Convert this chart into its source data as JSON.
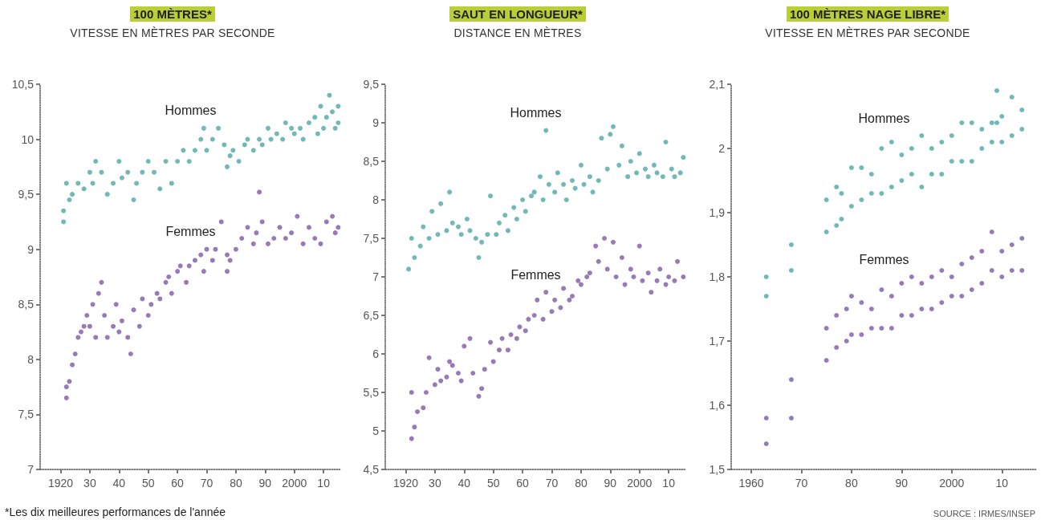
{
  "chart_data": [
    {
      "type": "scatter",
      "title": "100 MÈTRES*",
      "subtitle": "VITESSE EN MÈTRES PAR SECONDE",
      "marker": "circle",
      "xlim": [
        1913,
        2016
      ],
      "ylim": [
        7,
        10.5
      ],
      "xticks": [
        {
          "value": 1920,
          "label": "1920"
        },
        {
          "value": 1930,
          "label": "30"
        },
        {
          "value": 1940,
          "label": "40"
        },
        {
          "value": 1950,
          "label": "50"
        },
        {
          "value": 1960,
          "label": "60"
        },
        {
          "value": 1970,
          "label": "70"
        },
        {
          "value": 1980,
          "label": "80"
        },
        {
          "value": 1990,
          "label": "90"
        },
        {
          "value": 2000,
          "label": "2000"
        },
        {
          "value": 2010,
          "label": "10"
        }
      ],
      "yticks": [
        7,
        {
          "value": 7.5,
          "label": "7,5"
        },
        8,
        {
          "value": 8.5,
          "label": "8,5"
        },
        9,
        {
          "value": 9.5,
          "label": "9,5"
        },
        10,
        {
          "value": 10.5,
          "label": "10,5"
        }
      ],
      "annotations": [
        "*Les dix meilleures performances de l'année"
      ],
      "series": [
        {
          "name": "Hommes",
          "color": "#4fa6a2",
          "x": [
            1921,
            1921,
            1922,
            1923,
            1924,
            1926,
            1928,
            1930,
            1931,
            1932,
            1934,
            1936,
            1938,
            1940,
            1941,
            1943,
            1945,
            1946,
            1948,
            1950,
            1952,
            1954,
            1956,
            1958,
            1960,
            1962,
            1964,
            1966,
            1968,
            1969,
            1970,
            1972,
            1974,
            1976,
            1977,
            1978,
            1979,
            1981,
            1983,
            1984,
            1986,
            1988,
            1989,
            1991,
            1992,
            1994,
            1996,
            1997,
            1999,
            2000,
            2002,
            2003,
            2005,
            2007,
            2008,
            2009,
            2010,
            2011,
            2012,
            2013,
            2014,
            2015,
            2015
          ],
          "values": [
            9.25,
            9.35,
            9.6,
            9.45,
            9.5,
            9.6,
            9.55,
            9.7,
            9.6,
            9.8,
            9.7,
            9.5,
            9.6,
            9.8,
            9.65,
            9.7,
            9.45,
            9.6,
            9.7,
            9.8,
            9.7,
            9.55,
            9.8,
            9.6,
            9.8,
            9.9,
            9.8,
            9.9,
            10.0,
            10.1,
            9.9,
            10.0,
            10.1,
            9.95,
            9.75,
            9.85,
            9.9,
            9.8,
            9.95,
            10.0,
            9.9,
            10.0,
            9.95,
            10.1,
            10.0,
            10.05,
            10.0,
            10.15,
            10.1,
            10.05,
            10.1,
            10.0,
            10.15,
            10.2,
            10.05,
            10.3,
            10.1,
            10.2,
            10.4,
            10.25,
            10.1,
            10.3,
            10.15
          ]
        },
        {
          "name": "Femmes",
          "color": "#7d5aa8",
          "x": [
            1922,
            1922,
            1923,
            1924,
            1925,
            1926,
            1927,
            1928,
            1929,
            1930,
            1931,
            1932,
            1933,
            1934,
            1935,
            1936,
            1938,
            1939,
            1940,
            1941,
            1943,
            1944,
            1945,
            1947,
            1948,
            1950,
            1951,
            1953,
            1954,
            1956,
            1957,
            1958,
            1960,
            1961,
            1963,
            1964,
            1966,
            1968,
            1969,
            1970,
            1972,
            1973,
            1975,
            1977,
            1977,
            1978,
            1980,
            1982,
            1984,
            1986,
            1987,
            1988,
            1989,
            1991,
            1993,
            1995,
            1997,
            1999,
            2001,
            2003,
            2005,
            2007,
            2009,
            2011,
            2013,
            2014,
            2015
          ],
          "values": [
            7.65,
            7.75,
            7.8,
            7.95,
            8.05,
            8.2,
            8.25,
            8.3,
            8.4,
            8.3,
            8.5,
            8.2,
            8.6,
            8.7,
            8.4,
            8.2,
            8.3,
            8.5,
            8.25,
            8.35,
            8.2,
            8.05,
            8.45,
            8.3,
            8.55,
            8.4,
            8.5,
            8.6,
            8.55,
            8.7,
            8.75,
            8.6,
            8.8,
            8.85,
            8.7,
            8.85,
            8.9,
            8.95,
            8.8,
            9.0,
            8.9,
            9.0,
            9.25,
            8.8,
            8.95,
            8.9,
            9.0,
            9.1,
            9.2,
            9.05,
            9.15,
            9.52,
            9.25,
            9.05,
            9.1,
            9.2,
            9.1,
            9.15,
            9.3,
            9.05,
            9.2,
            9.1,
            9.05,
            9.25,
            9.3,
            9.15,
            9.2
          ]
        }
      ]
    },
    {
      "type": "scatter",
      "title": "SAUT EN LONGUEUR*",
      "subtitle": "DISTANCE EN MÈTRES",
      "marker": "circle",
      "xlim": [
        1913,
        2016
      ],
      "ylim": [
        4.5,
        9.5
      ],
      "xticks": [
        {
          "value": 1920,
          "label": "1920"
        },
        {
          "value": 1930,
          "label": "30"
        },
        {
          "value": 1940,
          "label": "40"
        },
        {
          "value": 1950,
          "label": "50"
        },
        {
          "value": 1960,
          "label": "60"
        },
        {
          "value": 1970,
          "label": "70"
        },
        {
          "value": 1980,
          "label": "80"
        },
        {
          "value": 1990,
          "label": "90"
        },
        {
          "value": 2000,
          "label": "2000"
        },
        {
          "value": 2010,
          "label": "10"
        }
      ],
      "yticks": [
        {
          "value": 4.5,
          "label": "4,5"
        },
        5,
        {
          "value": 5.5,
          "label": "5,5"
        },
        6,
        {
          "value": 6.5,
          "label": "6,5"
        },
        7,
        {
          "value": 7.5,
          "label": "7,5"
        },
        8,
        {
          "value": 8.5,
          "label": "8,5"
        },
        9,
        {
          "value": 9.5,
          "label": "9,5"
        }
      ],
      "series": [
        {
          "name": "Hommes",
          "color": "#4fa6a2",
          "x": [
            1921,
            1922,
            1923,
            1925,
            1926,
            1928,
            1929,
            1931,
            1932,
            1934,
            1935,
            1936,
            1938,
            1939,
            1941,
            1942,
            1944,
            1945,
            1946,
            1948,
            1949,
            1951,
            1952,
            1954,
            1955,
            1957,
            1958,
            1960,
            1961,
            1963,
            1964,
            1966,
            1967,
            1968,
            1969,
            1971,
            1972,
            1974,
            1975,
            1977,
            1978,
            1980,
            1981,
            1983,
            1984,
            1986,
            1987,
            1989,
            1990,
            1991,
            1993,
            1994,
            1996,
            1997,
            1999,
            2000,
            2002,
            2003,
            2005,
            2006,
            2008,
            2009,
            2011,
            2012,
            2014,
            2015
          ],
          "values": [
            7.1,
            7.5,
            7.25,
            7.4,
            7.65,
            7.5,
            7.85,
            7.55,
            7.95,
            7.6,
            8.1,
            7.7,
            7.65,
            7.55,
            7.75,
            7.6,
            7.5,
            7.25,
            7.45,
            7.55,
            8.05,
            7.55,
            7.7,
            7.8,
            7.6,
            7.9,
            7.75,
            8.0,
            7.85,
            8.05,
            8.1,
            8.3,
            8.0,
            8.9,
            8.2,
            8.1,
            8.35,
            8.2,
            8.0,
            8.25,
            8.15,
            8.45,
            8.2,
            8.3,
            8.1,
            8.25,
            8.8,
            8.4,
            8.85,
            8.95,
            8.45,
            8.7,
            8.3,
            8.5,
            8.35,
            8.6,
            8.4,
            8.3,
            8.45,
            8.35,
            8.3,
            8.75,
            8.4,
            8.3,
            8.35,
            8.55
          ]
        },
        {
          "name": "Femmes",
          "color": "#7d5aa8",
          "x": [
            1922,
            1922,
            1923,
            1924,
            1926,
            1927,
            1928,
            1930,
            1931,
            1932,
            1934,
            1935,
            1936,
            1938,
            1939,
            1940,
            1942,
            1943,
            1945,
            1946,
            1947,
            1949,
            1950,
            1952,
            1953,
            1955,
            1956,
            1958,
            1959,
            1961,
            1962,
            1964,
            1965,
            1967,
            1968,
            1970,
            1971,
            1973,
            1974,
            1976,
            1977,
            1979,
            1980,
            1982,
            1983,
            1985,
            1986,
            1988,
            1989,
            1991,
            1992,
            1994,
            1995,
            1997,
            1998,
            2000,
            2001,
            2003,
            2004,
            2006,
            2007,
            2009,
            2010,
            2012,
            2013,
            2015
          ],
          "values": [
            4.9,
            5.5,
            5.05,
            5.25,
            5.3,
            5.5,
            5.95,
            5.6,
            5.8,
            5.65,
            5.7,
            5.9,
            5.85,
            5.75,
            5.65,
            6.1,
            6.2,
            5.75,
            5.45,
            5.55,
            5.8,
            6.15,
            5.9,
            6.05,
            6.2,
            6.05,
            6.25,
            6.2,
            6.35,
            6.3,
            6.45,
            6.5,
            6.7,
            6.45,
            6.8,
            6.55,
            6.7,
            6.6,
            6.85,
            6.7,
            6.75,
            6.95,
            6.9,
            7.0,
            7.05,
            7.4,
            7.2,
            7.5,
            7.1,
            7.45,
            7.0,
            7.25,
            6.9,
            7.1,
            7.0,
            7.4,
            6.95,
            7.05,
            6.8,
            6.95,
            7.1,
            6.9,
            7.0,
            6.95,
            7.2,
            7.0
          ]
        }
      ]
    },
    {
      "type": "scatter",
      "title": "100 MÈTRES NAGE LIBRE*",
      "subtitle": "VITESSE EN MÈTRES PAR SECONDE",
      "marker": "circle",
      "xlim": [
        1956,
        2017
      ],
      "ylim": [
        1.5,
        2.1
      ],
      "xticks": [
        {
          "value": 1960,
          "label": "1960"
        },
        {
          "value": 1970,
          "label": "70"
        },
        {
          "value": 1980,
          "label": "80"
        },
        {
          "value": 1990,
          "label": "90"
        },
        {
          "value": 2000,
          "label": "2000"
        },
        {
          "value": 2010,
          "label": "10"
        }
      ],
      "yticks": [
        {
          "value": 1.5,
          "label": "1,5"
        },
        {
          "value": 1.6,
          "label": "1,6"
        },
        {
          "value": 1.7,
          "label": "1,7"
        },
        {
          "value": 1.8,
          "label": "1,8"
        },
        {
          "value": 1.9,
          "label": "1,9"
        },
        2,
        {
          "value": 2.1,
          "label": "2,1"
        }
      ],
      "annotations": [
        "SOURCE : IRMES/INSEP"
      ],
      "series": [
        {
          "name": "Hommes",
          "color": "#4fa6a2",
          "x": [
            1963,
            1963,
            1968,
            1968,
            1975,
            1975,
            1977,
            1977,
            1978,
            1978,
            1980,
            1980,
            1982,
            1982,
            1984,
            1984,
            1986,
            1986,
            1988,
            1988,
            1990,
            1990,
            1992,
            1992,
            1994,
            1994,
            1996,
            1996,
            1998,
            1998,
            2000,
            2000,
            2002,
            2002,
            2004,
            2004,
            2006,
            2006,
            2008,
            2008,
            2009,
            2009,
            2010,
            2010,
            2012,
            2012,
            2014,
            2014
          ],
          "values": [
            1.77,
            1.8,
            1.81,
            1.85,
            1.87,
            1.92,
            1.88,
            1.94,
            1.89,
            1.93,
            1.91,
            1.97,
            1.92,
            1.97,
            1.93,
            1.96,
            1.93,
            2.0,
            1.94,
            2.01,
            1.95,
            1.99,
            1.96,
            2.0,
            1.94,
            2.02,
            1.96,
            2.0,
            1.96,
            2.01,
            1.98,
            2.02,
            1.98,
            2.04,
            1.98,
            2.04,
            2.0,
            2.03,
            2.01,
            2.04,
            2.04,
            2.09,
            2.01,
            2.05,
            2.02,
            2.08,
            2.03,
            2.06
          ]
        },
        {
          "name": "Femmes",
          "color": "#7d5aa8",
          "x": [
            1963,
            1963,
            1968,
            1968,
            1975,
            1975,
            1977,
            1977,
            1979,
            1979,
            1980,
            1980,
            1982,
            1982,
            1984,
            1984,
            1986,
            1986,
            1988,
            1988,
            1990,
            1990,
            1992,
            1992,
            1994,
            1994,
            1996,
            1996,
            1998,
            1998,
            2000,
            2000,
            2002,
            2002,
            2004,
            2004,
            2006,
            2006,
            2008,
            2008,
            2010,
            2010,
            2012,
            2012,
            2014,
            2014
          ],
          "values": [
            1.54,
            1.58,
            1.58,
            1.64,
            1.67,
            1.72,
            1.69,
            1.74,
            1.7,
            1.75,
            1.71,
            1.77,
            1.71,
            1.76,
            1.72,
            1.75,
            1.72,
            1.78,
            1.72,
            1.77,
            1.74,
            1.79,
            1.74,
            1.8,
            1.75,
            1.79,
            1.75,
            1.8,
            1.76,
            1.81,
            1.77,
            1.8,
            1.77,
            1.82,
            1.78,
            1.83,
            1.79,
            1.84,
            1.81,
            1.87,
            1.8,
            1.84,
            1.81,
            1.85,
            1.81,
            1.86
          ]
        }
      ]
    }
  ]
}
